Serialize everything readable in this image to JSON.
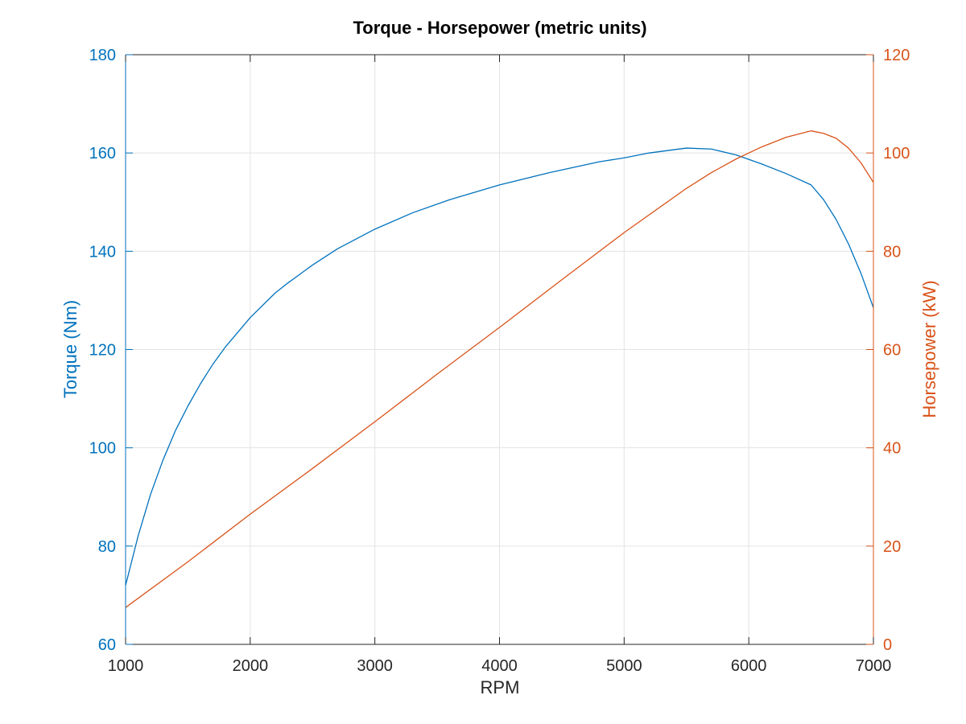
{
  "chart_data": {
    "type": "line",
    "title": "Torque - Horsepower (metric units)",
    "xlabel": "RPM",
    "ylabel_left": "Torque (Nm)",
    "ylabel_right": "Horsepower (kW)",
    "xlim": [
      1000,
      7000
    ],
    "ylim_left": [
      60,
      180
    ],
    "ylim_right": [
      0,
      120
    ],
    "xticks": [
      1000,
      2000,
      3000,
      4000,
      5000,
      6000,
      7000
    ],
    "yticks_left": [
      60,
      80,
      100,
      120,
      140,
      160,
      180
    ],
    "yticks_right": [
      0,
      20,
      40,
      60,
      80,
      100,
      120
    ],
    "grid": true,
    "colors": {
      "left_axis": "#0072BD",
      "right_axis": "#D95319",
      "torque_line": "#0072BD",
      "horsepower_line": "#D95319",
      "grid": "#e3e3e3",
      "frame": "#262626"
    },
    "series": [
      {
        "axis": "left",
        "color": "#0072BD",
        "x": [
          1000,
          1100,
          1200,
          1300,
          1400,
          1500,
          1600,
          1700,
          1800,
          2000,
          2200,
          2300,
          2500,
          2700,
          3000,
          3300,
          3600,
          4000,
          4400,
          4800,
          5000,
          5200,
          5500,
          5700,
          5900,
          6100,
          6300,
          6500,
          6600,
          6700,
          6800,
          6900,
          7000
        ],
        "y": [
          72,
          82,
          90.5,
          97.5,
          103.5,
          108.5,
          113,
          117,
          120.5,
          126.5,
          131.5,
          133.5,
          137.2,
          140.5,
          144.5,
          147.8,
          150.5,
          153.5,
          156,
          158.2,
          159,
          160,
          161,
          160.8,
          159.6,
          157.8,
          155.8,
          153.5,
          150.5,
          146.5,
          141.5,
          135.5,
          128.5
        ]
      },
      {
        "axis": "right",
        "color": "#D95319",
        "x": [
          1000,
          1500,
          2000,
          2500,
          3000,
          3500,
          4000,
          4500,
          5000,
          5500,
          5700,
          5900,
          6000,
          6100,
          6300,
          6500,
          6600,
          6700,
          6800,
          6900,
          7000
        ],
        "y": [
          7.5,
          16.8,
          26.5,
          35.8,
          45.3,
          55,
          64.5,
          74.2,
          83.8,
          92.8,
          96,
          98.8,
          100,
          101.2,
          103.2,
          104.5,
          104,
          103,
          101,
          98,
          94
        ]
      }
    ]
  }
}
